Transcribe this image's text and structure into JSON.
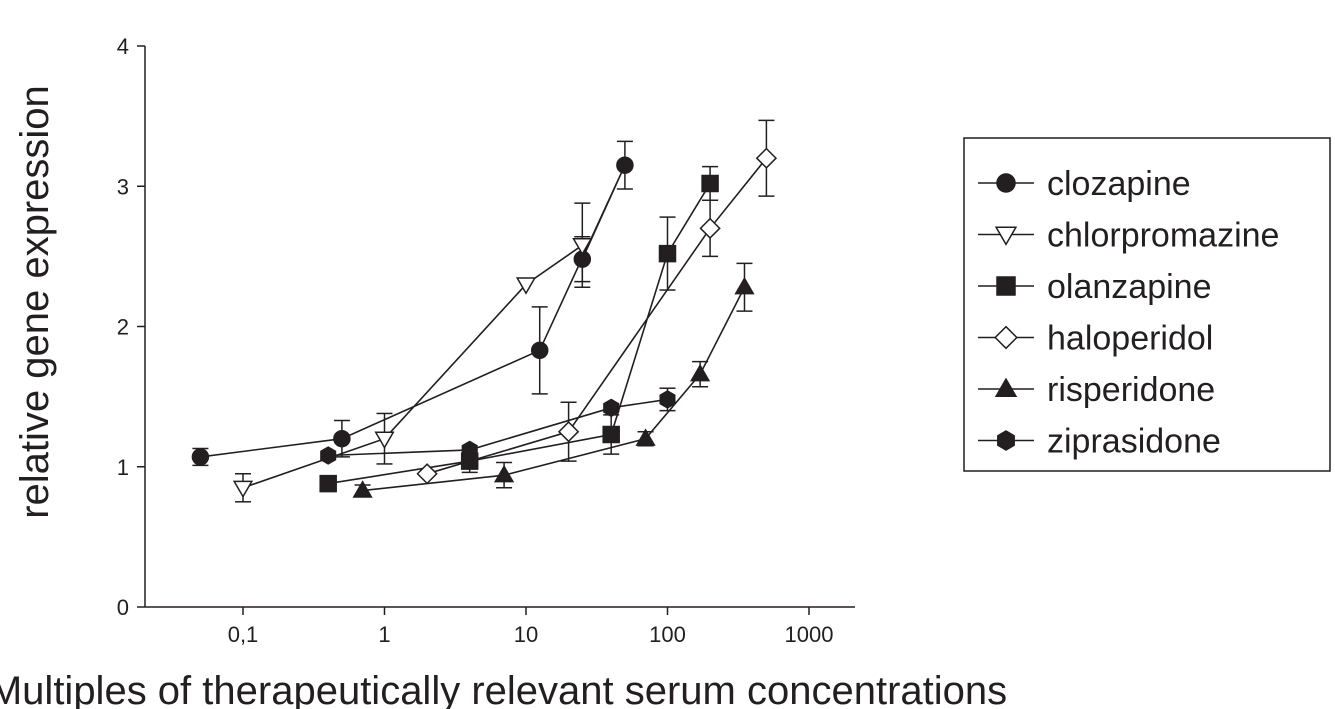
{
  "chart_data": {
    "type": "scatter",
    "title": "",
    "xlabel": "Multiples of therapeutically relevant serum concentrations",
    "ylabel": "relative gene expression",
    "x_scale": "log",
    "xlim": [
      0.02,
      2000
    ],
    "ylim": [
      0,
      4
    ],
    "x_ticks": [
      {
        "value": 0.1,
        "label": "0,1"
      },
      {
        "value": 1,
        "label": "1"
      },
      {
        "value": 10,
        "label": "10"
      },
      {
        "value": 100,
        "label": "100"
      },
      {
        "value": 1000,
        "label": "1000"
      }
    ],
    "y_ticks": [
      {
        "value": 0,
        "label": "0"
      },
      {
        "value": 1,
        "label": "1"
      },
      {
        "value": 2,
        "label": "2"
      },
      {
        "value": 3,
        "label": "3"
      },
      {
        "value": 4,
        "label": "4"
      }
    ],
    "grid": false,
    "legend_position": "right",
    "series": [
      {
        "name": "clozapine",
        "marker": "circle-filled",
        "points": [
          {
            "x": 0.05,
            "y": 1.07,
            "err": 0.06
          },
          {
            "x": 0.5,
            "y": 1.2,
            "err": 0.13
          },
          {
            "x": 12.5,
            "y": 1.83,
            "err": 0.31
          },
          {
            "x": 25,
            "y": 2.48,
            "err": 0.16
          },
          {
            "x": 50,
            "y": 3.15,
            "err": 0.17
          }
        ]
      },
      {
        "name": "chlorpromazine",
        "marker": "triangle-down-open",
        "points": [
          {
            "x": 0.1,
            "y": 0.85,
            "err": 0.1
          },
          {
            "x": 1,
            "y": 1.2,
            "err": 0.18
          },
          {
            "x": 10,
            "y": 2.3,
            "err": 0
          },
          {
            "x": 25,
            "y": 2.58,
            "err": 0.3
          }
        ]
      },
      {
        "name": "olanzapine",
        "marker": "square-filled",
        "points": [
          {
            "x": 0.4,
            "y": 0.88,
            "err": 0
          },
          {
            "x": 4,
            "y": 1.04,
            "err": 0.08
          },
          {
            "x": 40,
            "y": 1.23,
            "err": 0.14
          },
          {
            "x": 100,
            "y": 2.52,
            "err": 0.26
          },
          {
            "x": 200,
            "y": 3.02,
            "err": 0.12
          }
        ]
      },
      {
        "name": "haloperidol",
        "marker": "diamond-open",
        "points": [
          {
            "x": 2,
            "y": 0.95,
            "err": 0
          },
          {
            "x": 20,
            "y": 1.25,
            "err": 0.21
          },
          {
            "x": 200,
            "y": 2.7,
            "err": 0.2
          },
          {
            "x": 500,
            "y": 3.2,
            "err": 0.27
          }
        ]
      },
      {
        "name": "risperidone",
        "marker": "triangle-up-filled",
        "points": [
          {
            "x": 0.7,
            "y": 0.83,
            "err": 0.04
          },
          {
            "x": 7,
            "y": 0.94,
            "err": 0.09
          },
          {
            "x": 70,
            "y": 1.2,
            "err": 0.05
          },
          {
            "x": 170,
            "y": 1.66,
            "err": 0.09
          },
          {
            "x": 350,
            "y": 2.28,
            "err": 0.17
          }
        ]
      },
      {
        "name": "ziprasidone",
        "marker": "hexagon-filled",
        "points": [
          {
            "x": 0.4,
            "y": 1.08,
            "err": 0
          },
          {
            "x": 4,
            "y": 1.12,
            "err": 0
          },
          {
            "x": 40,
            "y": 1.42,
            "err": 0
          },
          {
            "x": 100,
            "y": 1.48,
            "err": 0.08
          }
        ]
      }
    ],
    "connections": [
      {
        "series": "clozapine",
        "order": [
          0,
          1,
          2,
          4,
          3
        ]
      },
      {
        "series": "chlorpromazine",
        "order": [
          0,
          1,
          2,
          3
        ]
      },
      {
        "series": "olanzapine",
        "order": [
          0,
          1,
          2,
          3,
          4
        ]
      },
      {
        "series": "haloperidol",
        "order": [
          0,
          1,
          2,
          3
        ]
      },
      {
        "series": "risperidone",
        "order": [
          0,
          1,
          2,
          3,
          4
        ]
      },
      {
        "series": "ziprasidone",
        "order": [
          0,
          1,
          2,
          3
        ]
      }
    ],
    "colors": {
      "ink": "#231f20",
      "background": "#ffffff"
    }
  }
}
